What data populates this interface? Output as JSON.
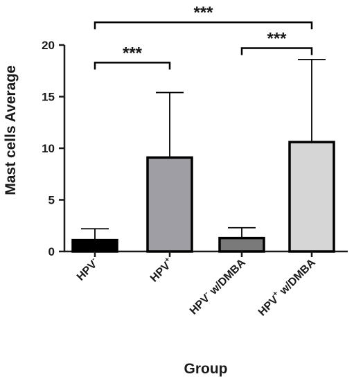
{
  "chart_data": {
    "type": "bar",
    "ylabel": "Mast cells Average",
    "xlabel": "Group",
    "ylim": [
      0,
      20
    ],
    "yticks": [
      "0",
      "5",
      "10",
      "15",
      "20"
    ],
    "categories": [
      {
        "base": "HPV",
        "sup": "-",
        "suffix": ""
      },
      {
        "base": "HPV",
        "sup": "+",
        "suffix": ""
      },
      {
        "base": "HPV",
        "sup": "-",
        "suffix": " w/DMBA"
      },
      {
        "base": "HPV",
        "sup": "+",
        "suffix": " w/DMBA"
      }
    ],
    "values": [
      1.1,
      9.1,
      1.3,
      10.6
    ],
    "errors": [
      1.1,
      6.3,
      1.0,
      8.0
    ],
    "colors": [
      "#000000",
      "#9e9ea4",
      "#7a7a7a",
      "#d6d6d6"
    ],
    "significance": [
      {
        "from": 0,
        "to": 3,
        "label": "***",
        "y": 22.2
      },
      {
        "from": 0,
        "to": 1,
        "label": "***",
        "y": 18.3
      },
      {
        "from": 2,
        "to": 3,
        "label": "***",
        "y": 19.7
      }
    ]
  }
}
